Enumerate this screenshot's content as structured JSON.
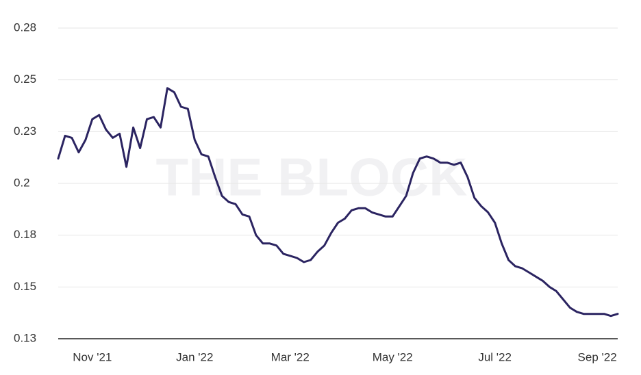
{
  "chart_data": {
    "type": "line",
    "watermark": "THE BLOCK",
    "categories": [
      null,
      null,
      null,
      null,
      null,
      "Nov '21",
      null,
      null,
      null,
      null,
      null,
      null,
      null,
      null,
      null,
      null,
      null,
      null,
      null,
      null,
      "Jan '22",
      null,
      null,
      null,
      null,
      null,
      null,
      null,
      null,
      null,
      null,
      null,
      null,
      null,
      "Mar '22",
      null,
      null,
      null,
      null,
      null,
      null,
      null,
      null,
      null,
      null,
      null,
      null,
      null,
      null,
      "May '22",
      null,
      null,
      null,
      null,
      null,
      null,
      null,
      null,
      null,
      null,
      null,
      null,
      null,
      null,
      "Jul '22",
      null,
      null,
      null,
      null,
      null,
      null,
      null,
      null,
      null,
      null,
      null,
      null,
      null,
      null,
      "Sep '22",
      null,
      null,
      null
    ],
    "series": [
      {
        "color": "#2b2461",
        "values": [
          0.212,
          0.223,
          0.222,
          0.215,
          0.221,
          0.231,
          0.233,
          0.226,
          0.222,
          0.224,
          0.208,
          0.227,
          0.217,
          0.231,
          0.232,
          0.227,
          0.246,
          0.244,
          0.237,
          0.236,
          0.221,
          0.214,
          0.213,
          0.203,
          0.194,
          0.191,
          0.19,
          0.185,
          0.184,
          0.175,
          0.171,
          0.171,
          0.17,
          0.166,
          0.165,
          0.164,
          0.162,
          0.163,
          0.167,
          0.17,
          0.176,
          0.181,
          0.183,
          0.187,
          0.188,
          0.188,
          0.186,
          0.185,
          0.184,
          0.184,
          0.189,
          0.194,
          0.205,
          0.212,
          0.213,
          0.212,
          0.21,
          0.21,
          0.209,
          0.21,
          0.203,
          0.193,
          0.189,
          0.186,
          0.181,
          0.171,
          0.163,
          0.16,
          0.159,
          0.157,
          0.155,
          0.153,
          0.15,
          0.148,
          0.144,
          0.14,
          0.138,
          0.137,
          0.137,
          0.137,
          0.137,
          0.136,
          0.137
        ]
      }
    ],
    "ylim": [
      0.125,
      0.275
    ],
    "yticks": [
      {
        "value": 0.125,
        "label": "0.13"
      },
      0.15,
      {
        "value": 0.175,
        "label": "0.18"
      },
      0.2,
      {
        "value": 0.225,
        "label": "0.23"
      },
      0.25,
      {
        "value": 0.275,
        "label": "0.28"
      }
    ],
    "grid": true
  }
}
